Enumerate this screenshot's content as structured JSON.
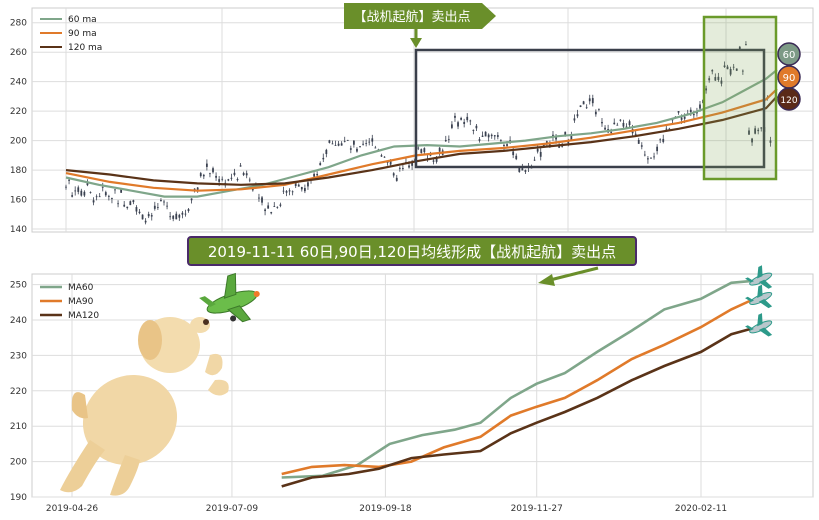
{
  "chart_data": [
    {
      "type": "line",
      "title": "",
      "xlabel": "",
      "ylabel": "",
      "ylim": [
        138,
        290
      ],
      "yticks": [
        140,
        160,
        180,
        200,
        220,
        240,
        260,
        280
      ],
      "grid": true,
      "legend_position": "top-left",
      "x_range_days": [
        0,
        325
      ],
      "series": [
        {
          "name": "60 ma",
          "color": "#7fa68a",
          "points": [
            [
              0,
              175
            ],
            [
              15,
              170
            ],
            [
              30,
              166
            ],
            [
              45,
              162
            ],
            [
              60,
              162
            ],
            [
              75,
              166
            ],
            [
              90,
              170
            ],
            [
              105,
              176
            ],
            [
              120,
              182
            ],
            [
              135,
              190
            ],
            [
              150,
              196
            ],
            [
              165,
              197
            ],
            [
              180,
              196
            ],
            [
              195,
              198
            ],
            [
              210,
              200
            ],
            [
              225,
              203
            ],
            [
              240,
              205
            ],
            [
              255,
              208
            ],
            [
              270,
              212
            ],
            [
              285,
              218
            ],
            [
              300,
              226
            ],
            [
              310,
              234
            ],
            [
              320,
              242
            ],
            [
              325,
              248
            ]
          ]
        },
        {
          "name": "90 ma",
          "color": "#e07a2a",
          "points": [
            [
              0,
              178
            ],
            [
              20,
              172
            ],
            [
              40,
              168
            ],
            [
              60,
              166
            ],
            [
              80,
              167
            ],
            [
              100,
              170
            ],
            [
              120,
              177
            ],
            [
              140,
              184
            ],
            [
              160,
              190
            ],
            [
              180,
              193
            ],
            [
              200,
              195
            ],
            [
              220,
              198
            ],
            [
              240,
              202
            ],
            [
              260,
              207
            ],
            [
              280,
              212
            ],
            [
              300,
              219
            ],
            [
              320,
              228
            ],
            [
              325,
              235
            ]
          ]
        },
        {
          "name": "120 ma",
          "color": "#5a3318",
          "points": [
            [
              0,
              180
            ],
            [
              20,
              177
            ],
            [
              40,
              173
            ],
            [
              60,
              171
            ],
            [
              80,
              170
            ],
            [
              100,
              171
            ],
            [
              120,
              175
            ],
            [
              140,
              180
            ],
            [
              160,
              186
            ],
            [
              180,
              191
            ],
            [
              200,
              193
            ],
            [
              220,
              196
            ],
            [
              240,
              199
            ],
            [
              260,
              203
            ],
            [
              280,
              208
            ],
            [
              300,
              214
            ],
            [
              320,
              222
            ],
            [
              325,
              230
            ]
          ]
        }
      ],
      "annotation": {
        "text": "【战机起航】卖出点",
        "badge_labels": [
          "60",
          "90",
          "120"
        ]
      }
    },
    {
      "type": "line",
      "title": "",
      "xlabel": "",
      "ylabel": "",
      "ylim": [
        190,
        253
      ],
      "yticks": [
        190,
        200,
        210,
        220,
        230,
        240,
        250
      ],
      "xticks": [
        "2019-04-26",
        "2019-07-09",
        "2019-09-18",
        "2019-11-27",
        "2020-02-11"
      ],
      "grid": true,
      "legend_position": "top-left",
      "series": [
        {
          "name": "MA60",
          "color": "#7fa68a",
          "points": [
            [
              "2019-08-01",
              195.5
            ],
            [
              "2019-08-20",
              196
            ],
            [
              "2019-09-05",
              199
            ],
            [
              "2019-09-20",
              205
            ],
            [
              "2019-10-05",
              207.5
            ],
            [
              "2019-10-20",
              209
            ],
            [
              "2019-11-01",
              211
            ],
            [
              "2019-11-15",
              218
            ],
            [
              "2019-11-27",
              222
            ],
            [
              "2019-12-10",
              225
            ],
            [
              "2019-12-25",
              231
            ],
            [
              "2020-01-10",
              237
            ],
            [
              "2020-01-25",
              243
            ],
            [
              "2020-02-11",
              246
            ],
            [
              "2020-02-25",
              250.5
            ],
            [
              "2020-03-05",
              251
            ]
          ]
        },
        {
          "name": "MA90",
          "color": "#e07a2a",
          "points": [
            [
              "2019-08-01",
              196.5
            ],
            [
              "2019-08-15",
              198.5
            ],
            [
              "2019-08-30",
              199
            ],
            [
              "2019-09-15",
              198.5
            ],
            [
              "2019-09-30",
              200
            ],
            [
              "2019-10-15",
              204
            ],
            [
              "2019-11-01",
              207
            ],
            [
              "2019-11-15",
              213
            ],
            [
              "2019-11-27",
              215.5
            ],
            [
              "2019-12-10",
              218
            ],
            [
              "2019-12-25",
              223
            ],
            [
              "2020-01-10",
              229
            ],
            [
              "2020-01-25",
              233
            ],
            [
              "2020-02-11",
              238
            ],
            [
              "2020-02-25",
              243
            ],
            [
              "2020-03-05",
              245.5
            ]
          ]
        },
        {
          "name": "MA120",
          "color": "#5a3318",
          "points": [
            [
              "2019-08-01",
              193
            ],
            [
              "2019-08-15",
              195.5
            ],
            [
              "2019-09-01",
              196.5
            ],
            [
              "2019-09-15",
              198
            ],
            [
              "2019-09-30",
              201
            ],
            [
              "2019-10-15",
              202
            ],
            [
              "2019-11-01",
              203
            ],
            [
              "2019-11-15",
              208
            ],
            [
              "2019-11-27",
              211
            ],
            [
              "2019-12-10",
              214
            ],
            [
              "2019-12-25",
              218
            ],
            [
              "2020-01-10",
              223
            ],
            [
              "2020-01-25",
              227
            ],
            [
              "2020-02-11",
              231
            ],
            [
              "2020-02-25",
              236
            ],
            [
              "2020-03-05",
              237.5
            ]
          ]
        }
      ],
      "annotation": {
        "text": "2019-11-11 60日,90日,120日均线形成【战机起航】卖出点"
      }
    }
  ],
  "colors": {
    "ma60": "#7fa68a",
    "ma90": "#e07a2a",
    "ma120": "#5a3318",
    "highlight": "#6a9a2a",
    "candle": "#3a4150"
  },
  "decor": {
    "icons": [
      "dog-illustration",
      "plane-icon"
    ]
  }
}
